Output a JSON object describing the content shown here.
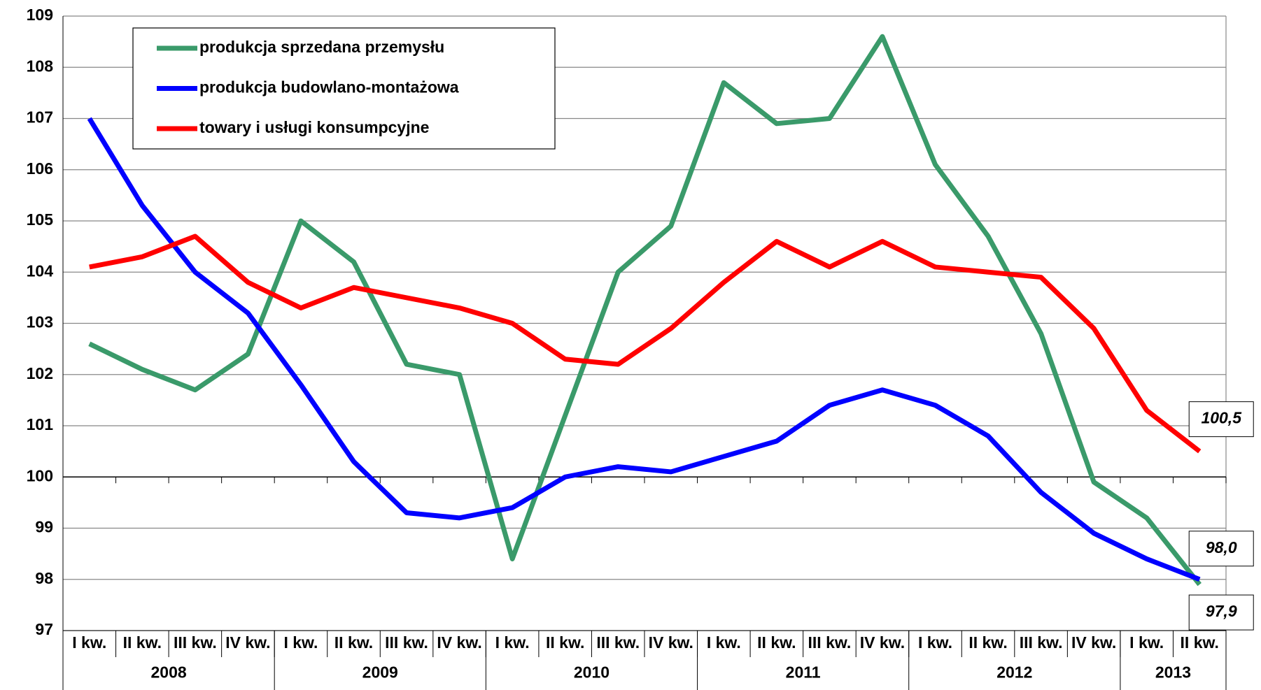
{
  "chart_data": {
    "type": "line",
    "categories": [
      "I kw.",
      "II kw.",
      "III kw.",
      "IV kw.",
      "I kw.",
      "II kw.",
      "III kw.",
      "IV kw.",
      "I kw.",
      "II kw.",
      "III kw.",
      "IV kw.",
      "I kw.",
      "II kw.",
      "III kw.",
      "IV kw.",
      "I kw.",
      "II kw.",
      "III kw.",
      "IV kw.",
      "I kw.",
      "II kw."
    ],
    "groups": [
      {
        "label": "2008",
        "span": 4
      },
      {
        "label": "2009",
        "span": 4
      },
      {
        "label": "2010",
        "span": 4
      },
      {
        "label": "2011",
        "span": 4
      },
      {
        "label": "2012",
        "span": 4
      },
      {
        "label": "2013",
        "span": 2
      }
    ],
    "series": [
      {
        "name": "produkcja sprzedana przemysłu",
        "color": "#3a9a6a",
        "label_color": "#008000",
        "values": [
          102.6,
          102.1,
          101.7,
          102.4,
          105.0,
          104.2,
          102.2,
          102.0,
          98.4,
          101.2,
          104.0,
          104.9,
          107.7,
          106.9,
          107.0,
          108.6,
          106.1,
          104.7,
          102.8,
          99.9,
          99.2,
          97.9
        ],
        "value_labels": [
          null,
          null,
          null,
          null,
          null,
          null,
          null,
          null,
          null,
          null,
          null,
          null,
          null,
          null,
          null,
          null,
          null,
          null,
          null,
          null,
          null,
          "97,9"
        ]
      },
      {
        "name": "produkcja budowlano-montażowa",
        "color": "#0000ff",
        "label_color": "#0000ff",
        "values": [
          107.0,
          105.3,
          104.0,
          103.2,
          101.8,
          100.3,
          99.3,
          99.2,
          99.4,
          100.0,
          100.2,
          100.1,
          100.4,
          100.7,
          101.4,
          101.7,
          101.4,
          100.8,
          99.7,
          98.9,
          98.4,
          98.0
        ],
        "value_labels": [
          null,
          null,
          null,
          null,
          null,
          null,
          null,
          null,
          null,
          null,
          null,
          null,
          null,
          null,
          null,
          null,
          null,
          null,
          null,
          null,
          null,
          "98,0"
        ]
      },
      {
        "name": "towary i usługi konsumpcyjne",
        "color": "#ff0000",
        "label_color": "#ff0000",
        "values": [
          104.1,
          104.3,
          104.7,
          103.8,
          103.3,
          103.7,
          103.5,
          103.3,
          103.0,
          102.3,
          102.2,
          102.9,
          103.8,
          104.6,
          104.1,
          104.6,
          104.1,
          104.0,
          103.9,
          102.9,
          101.3,
          100.5
        ],
        "value_labels": [
          null,
          null,
          null,
          null,
          null,
          null,
          null,
          null,
          null,
          null,
          null,
          null,
          null,
          null,
          null,
          null,
          null,
          null,
          null,
          null,
          null,
          "100,5"
        ]
      }
    ],
    "ylim": [
      97,
      109
    ],
    "yticks": [
      97,
      98,
      99,
      100,
      101,
      102,
      103,
      104,
      105,
      106,
      107,
      108,
      109
    ],
    "x_axis_crosses": 100,
    "grid": true,
    "legend": "upper left"
  }
}
